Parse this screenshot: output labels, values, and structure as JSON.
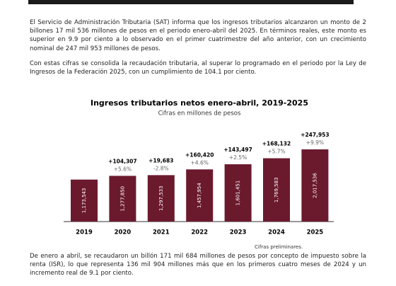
{
  "paragraphs": [
    "El Servicio de Administración Tributaria (SAT) informa que los ingresos tributarios alcanzaron un monto de 2 billones 17 mil 536 millones de pesos en el periodo enero-abril del 2025. En términos reales, este monto es superior en 9.9 por ciento a lo observado en el primer cuatrimestre del año anterior, con un crecimiento nominal de 247 mil 953 millones de pesos.",
    "Con estas cifras se consolida la recaudación tributaria, al superar lo programado en el periodo por la Ley de Ingresos de la Federación 2025, con un cumplimiento de 104.1 por ciento."
  ],
  "chart_data": {
    "type": "bar",
    "title": "Ingresos tributarios netos enero-abril, 2019-2025",
    "subtitle": "Cifras en millones de pesos",
    "categories": [
      "2019",
      "2020",
      "2021",
      "2022",
      "2023",
      "2024",
      "2025"
    ],
    "values": [
      1173543,
      1277850,
      1297533,
      1457954,
      1601451,
      1769583,
      2017536
    ],
    "value_labels": [
      "1,173,543",
      "1,277,850",
      "1,297,533",
      "1,457,954",
      "1,601,451",
      "1,769,583",
      "2,017,536"
    ],
    "color": "#6b1a2e",
    "change": {
      "values": [
        null,
        104307,
        19683,
        160420,
        143497,
        168132,
        247953
      ],
      "value_labels": [
        null,
        "+104,307",
        "+19,683",
        "+160,420",
        "+143,497",
        "+168,132",
        "+247,953"
      ]
    },
    "real_growth": {
      "values": [
        null,
        5.6,
        -2.8,
        4.6,
        2.5,
        5.7,
        9.9
      ],
      "value_labels": [
        null,
        "+5.6%",
        "-2.8%",
        "+4.6%",
        "+2.5%",
        "+5.7%",
        "+9.9%"
      ]
    },
    "note": "Cifras preliminares."
  },
  "footer_paragraph": "De enero a abril, se recaudaron un billón 171 mil 684 millones de pesos por concepto de impuesto sobre la renta (ISR), lo que representa 136 mil 904 millones más que en los primeros cuatro meses de 2024 y un incremento real de 9.1 por ciento."
}
